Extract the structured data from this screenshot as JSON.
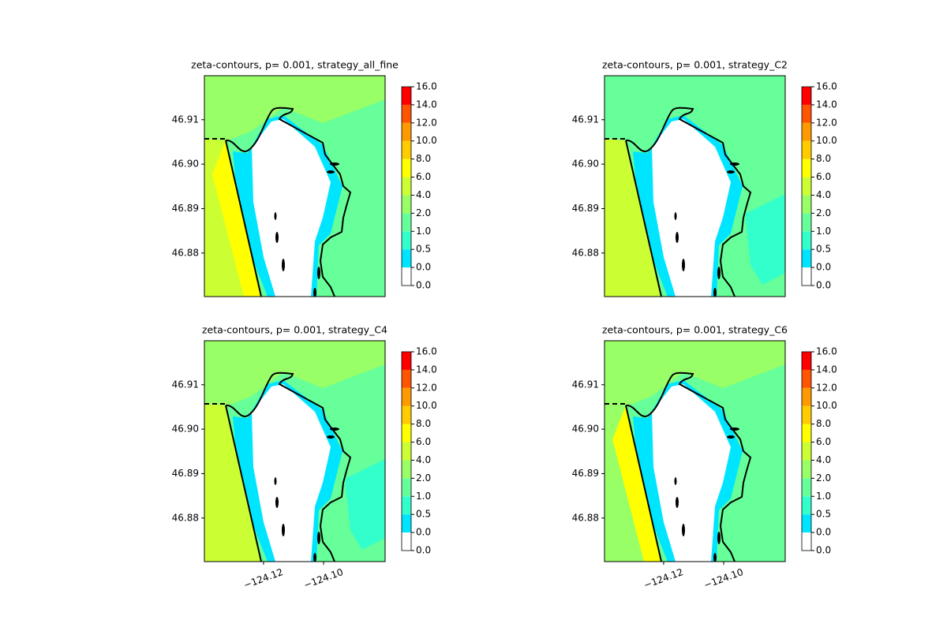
{
  "chart_data": [
    {
      "type": "contour",
      "title": "zeta-contours, p= 0.001, strategy_all_fine",
      "xlim": [
        -124.1397,
        -124.0795
      ],
      "ylim": [
        46.8702,
        46.9199
      ],
      "yticks": [
        46.88,
        46.89,
        {
          "value": 46.9,
          "label": "46.90"
        },
        46.91
      ],
      "levels": [
        {
          "value": 0,
          "label": "0.0"
        },
        {
          "value": 0,
          "label": "0.0"
        },
        0.5,
        {
          "value": 1,
          "label": "1.0"
        },
        {
          "value": 2,
          "label": "2.0"
        },
        {
          "value": 4,
          "label": "4.0"
        },
        {
          "value": 6,
          "label": "6.0"
        },
        {
          "value": 8,
          "label": "8.0"
        },
        {
          "value": 10,
          "label": "10.0"
        },
        {
          "value": 12,
          "label": "12.0"
        },
        {
          "value": 14,
          "label": "14.0"
        },
        {
          "value": 16,
          "label": "16.0"
        }
      ],
      "colors": [
        "#ffffff",
        "#00e5ff",
        "#33ffcc",
        "#66ff99",
        "#99ff66",
        "#ccff33",
        "#ffff00",
        "#ffcc00",
        "#ff9900",
        "#ff5500",
        "#ff0000"
      ]
    },
    {
      "type": "contour",
      "title": "zeta-contours, p= 0.001, strategy_C2",
      "xlim": [
        -124.1397,
        -124.0795
      ],
      "ylim": [
        46.8702,
        46.9199
      ],
      "yticks": [
        46.88,
        46.89,
        {
          "value": 46.9,
          "label": "46.90"
        },
        46.91
      ],
      "levels": [
        {
          "value": 0,
          "label": "0.0"
        },
        {
          "value": 0,
          "label": "0.0"
        },
        0.5,
        {
          "value": 1,
          "label": "1.0"
        },
        {
          "value": 2,
          "label": "2.0"
        },
        {
          "value": 4,
          "label": "4.0"
        },
        {
          "value": 6,
          "label": "6.0"
        },
        {
          "value": 8,
          "label": "8.0"
        },
        {
          "value": 10,
          "label": "10.0"
        },
        {
          "value": 12,
          "label": "12.0"
        },
        {
          "value": 14,
          "label": "14.0"
        },
        {
          "value": 16,
          "label": "16.0"
        }
      ],
      "colors": [
        "#ffffff",
        "#00e5ff",
        "#33ffcc",
        "#66ff99",
        "#99ff66",
        "#ccff33",
        "#ffff00",
        "#ffcc00",
        "#ff9900",
        "#ff5500",
        "#ff0000"
      ]
    },
    {
      "type": "contour",
      "title": "zeta-contours, p= 0.001, strategy_C4",
      "xlim": [
        -124.1397,
        -124.0795
      ],
      "ylim": [
        46.8702,
        46.9199
      ],
      "xticks": [
        {
          "value": -124.12,
          "label": "−124.12"
        },
        {
          "value": -124.1,
          "label": "−124.10"
        }
      ],
      "yticks": [
        46.88,
        46.89,
        {
          "value": 46.9,
          "label": "46.90"
        },
        46.91
      ],
      "levels": [
        {
          "value": 0,
          "label": "0.0"
        },
        {
          "value": 0,
          "label": "0.0"
        },
        0.5,
        {
          "value": 1,
          "label": "1.0"
        },
        {
          "value": 2,
          "label": "2.0"
        },
        {
          "value": 4,
          "label": "4.0"
        },
        {
          "value": 6,
          "label": "6.0"
        },
        {
          "value": 8,
          "label": "8.0"
        },
        {
          "value": 10,
          "label": "10.0"
        },
        {
          "value": 12,
          "label": "12.0"
        },
        {
          "value": 14,
          "label": "14.0"
        },
        {
          "value": 16,
          "label": "16.0"
        }
      ],
      "colors": [
        "#ffffff",
        "#00e5ff",
        "#33ffcc",
        "#66ff99",
        "#99ff66",
        "#ccff33",
        "#ffff00",
        "#ffcc00",
        "#ff9900",
        "#ff5500",
        "#ff0000"
      ]
    },
    {
      "type": "contour",
      "title": "zeta-contours, p= 0.001, strategy_C6",
      "xlim": [
        -124.1397,
        -124.0795
      ],
      "ylim": [
        46.8702,
        46.9199
      ],
      "xticks": [
        {
          "value": -124.12,
          "label": "−124.12"
        },
        {
          "value": -124.1,
          "label": "−124.10"
        }
      ],
      "yticks": [
        46.88,
        46.89,
        {
          "value": 46.9,
          "label": "46.90"
        },
        46.91
      ],
      "levels": [
        {
          "value": 0,
          "label": "0.0"
        },
        {
          "value": 0,
          "label": "0.0"
        },
        0.5,
        {
          "value": 1,
          "label": "1.0"
        },
        {
          "value": 2,
          "label": "2.0"
        },
        {
          "value": 4,
          "label": "4.0"
        },
        {
          "value": 6,
          "label": "6.0"
        },
        {
          "value": 8,
          "label": "8.0"
        },
        {
          "value": 10,
          "label": "10.0"
        },
        {
          "value": 12,
          "label": "12.0"
        },
        {
          "value": 14,
          "label": "14.0"
        },
        {
          "value": 16,
          "label": "16.0"
        }
      ],
      "colors": [
        "#ffffff",
        "#00e5ff",
        "#33ffcc",
        "#66ff99",
        "#99ff66",
        "#ccff33",
        "#ffff00",
        "#ffcc00",
        "#ff9900",
        "#ff5500",
        "#ff0000"
      ]
    }
  ]
}
